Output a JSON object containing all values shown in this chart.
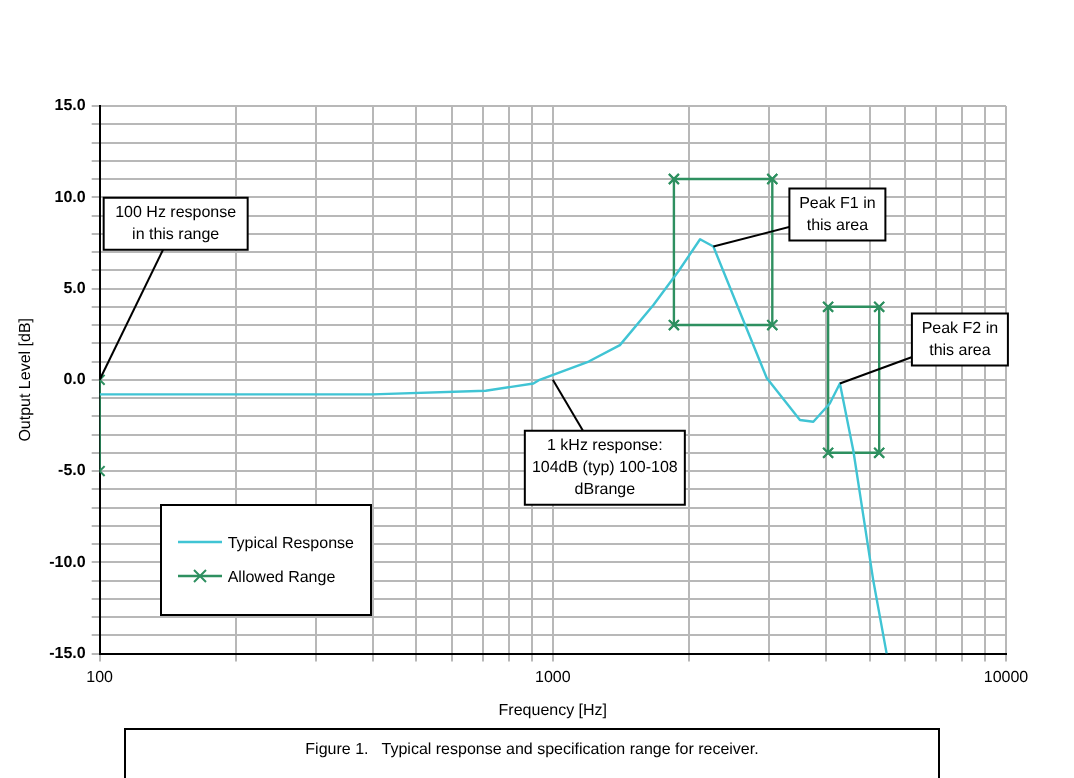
{
  "chart_data": {
    "type": "line",
    "xlabel": "Frequency [Hz]",
    "ylabel": "Output Level [dB]",
    "log": "x",
    "xlim": [
      100,
      10000
    ],
    "xticks": [
      100,
      {
        "value": 200,
        "label": null
      },
      {
        "value": 300,
        "label": null
      },
      {
        "value": 400,
        "label": null
      },
      {
        "value": 500,
        "label": null
      },
      {
        "value": 600,
        "label": null
      },
      {
        "value": 700,
        "label": null
      },
      {
        "value": 800,
        "label": null
      },
      {
        "value": 900,
        "label": null
      },
      1000,
      {
        "value": 2000,
        "label": null
      },
      {
        "value": 3000,
        "label": null
      },
      {
        "value": 4000,
        "label": null
      },
      {
        "value": 5000,
        "label": null
      },
      {
        "value": 6000,
        "label": null
      },
      {
        "value": 7000,
        "label": null
      },
      {
        "value": 8000,
        "label": null
      },
      {
        "value": 9000,
        "label": null
      },
      10000
    ],
    "ylim": [
      -15,
      15
    ],
    "yticks": [
      {
        "value": -15,
        "label": "-15.0"
      },
      {
        "value": -14,
        "label": null
      },
      {
        "value": -13,
        "label": null
      },
      {
        "value": -12,
        "label": null
      },
      {
        "value": -11,
        "label": null
      },
      {
        "value": -10,
        "label": "-10.0"
      },
      {
        "value": -9,
        "label": null
      },
      {
        "value": -8,
        "label": null
      },
      {
        "value": -7,
        "label": null
      },
      {
        "value": -6,
        "label": null
      },
      {
        "value": -5,
        "label": "-5.0"
      },
      {
        "value": -4,
        "label": null
      },
      {
        "value": -3,
        "label": null
      },
      {
        "value": -2,
        "label": null
      },
      {
        "value": -1,
        "label": null
      },
      {
        "value": 0,
        "label": "0.0"
      },
      {
        "value": 1,
        "label": null
      },
      {
        "value": 2,
        "label": null
      },
      {
        "value": 3,
        "label": null
      },
      {
        "value": 4,
        "label": null
      },
      {
        "value": 5,
        "label": "5.0"
      },
      {
        "value": 6,
        "label": null
      },
      {
        "value": 7,
        "label": null
      },
      {
        "value": 8,
        "label": null
      },
      {
        "value": 9,
        "label": null
      },
      {
        "value": 10,
        "label": "10.0"
      },
      {
        "value": 11,
        "label": null
      },
      {
        "value": 12,
        "label": null
      },
      {
        "value": 13,
        "label": null
      },
      {
        "value": 14,
        "label": null
      },
      {
        "value": 15,
        "label": "15.0"
      }
    ],
    "grid": true,
    "legend": "bottom left",
    "series": [
      {
        "name": "Typical Response",
        "color": "#40c4d4",
        "marker": "none",
        "x": [
          100,
          200,
          400,
          711,
          906,
          935,
          1200,
          1406,
          1667,
          1900,
          2113,
          2261,
          2588,
          2965,
          3510,
          3757,
          4085,
          4300,
          4605,
          5095,
          5453
        ],
        "values": [
          -0.8,
          -0.8,
          -0.8,
          -0.6,
          -0.2,
          0,
          1,
          1.9,
          4.1,
          6,
          7.7,
          7.3,
          3.7,
          0.1,
          -2.2,
          -2.3,
          -1.3,
          -0.2,
          -3.9,
          -11,
          -15
        ]
      },
      {
        "name": "Allowed Range",
        "color": "#2e9060",
        "marker": "cross",
        "x": [
          100,
          100
        ],
        "values": [
          0,
          -5
        ]
      },
      {
        "color": "#2e9060",
        "marker": "cross",
        "x": [
          1850,
          3050
        ],
        "values": [
          11,
          11
        ]
      },
      {
        "color": "#2e9060",
        "marker": "cross",
        "x": [
          1850,
          3050
        ],
        "values": [
          3,
          3
        ]
      },
      {
        "color": "#2e9060",
        "marker": "cross",
        "x": [
          1850,
          1850
        ],
        "values": [
          3,
          11
        ]
      },
      {
        "color": "#2e9060",
        "marker": "cross",
        "x": [
          3050,
          3050
        ],
        "values": [
          3,
          11
        ]
      },
      {
        "color": "#2e9060",
        "marker": "cross",
        "x": [
          4050,
          5250
        ],
        "values": [
          4,
          4
        ]
      },
      {
        "color": "#2e9060",
        "marker": "cross",
        "x": [
          4050,
          5250
        ],
        "values": [
          -4,
          -4
        ]
      },
      {
        "color": "#2e9060",
        "marker": "cross",
        "x": [
          4050,
          4050
        ],
        "values": [
          -4,
          4
        ]
      },
      {
        "color": "#2e9060",
        "marker": "cross",
        "x": [
          5250,
          5250
        ],
        "values": [
          -4,
          4
        ]
      }
    ],
    "annotations": [
      {
        "text": "100 Hz response in this range",
        "x": 100,
        "y": 0
      },
      {
        "text": "1 kHz response: 104dB (typ) 100-108 dBrange",
        "x": 1000,
        "y": 0
      },
      {
        "text": "Peak F1 in this area",
        "x": 2261,
        "y": 7.3
      },
      {
        "text": "Peak F2 in this area",
        "x": 4300,
        "y": -0.2
      },
      "Figure 1.   Typical response and specification range for receiver."
    ]
  }
}
